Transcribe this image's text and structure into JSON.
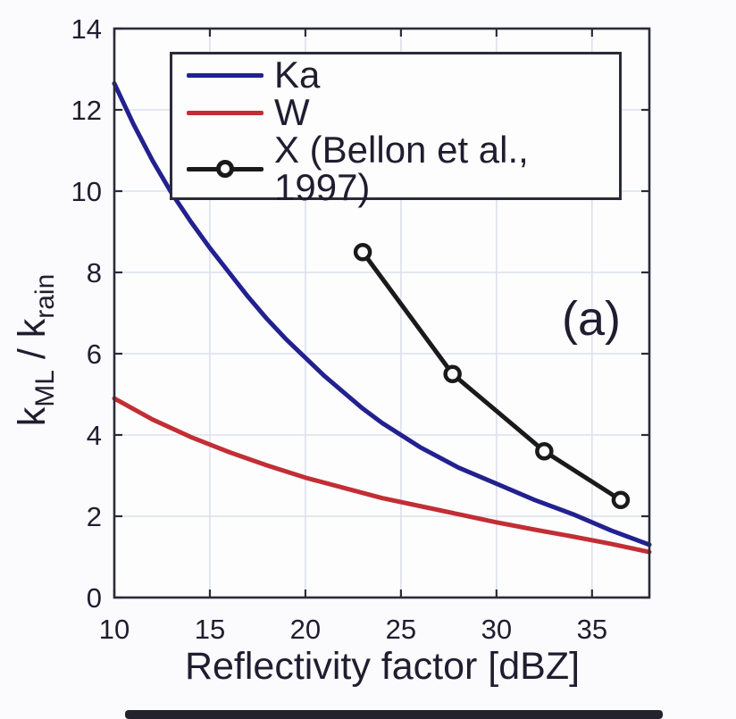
{
  "figure": {
    "panel_label": "(a)",
    "background": "#fbfafc",
    "plot_background": "#fdfdfe",
    "frame_color": "#2b2b3a",
    "grid_color": "#dde0ed",
    "text_color": "#201d30",
    "bottom_strip_color": "#23232e"
  },
  "chart_data": {
    "type": "line",
    "title": "",
    "xlabel": "Reflectivity factor [dBZ]",
    "ylabel": "k_ML / k_rain",
    "ylabel_parts": {
      "base1": "k",
      "sub1": "ML",
      "sep": " / ",
      "base2": "k",
      "sub2": "rain"
    },
    "xlim": [
      10,
      38
    ],
    "ylim": [
      0,
      14
    ],
    "xticks": [
      10,
      15,
      20,
      25,
      30,
      35
    ],
    "yticks": [
      0,
      2,
      4,
      6,
      8,
      10,
      12,
      14
    ],
    "grid": true,
    "legend_position": "top-left-inside",
    "series": [
      {
        "name": "Ka",
        "color": "#22218f",
        "marker": "none",
        "x": [
          10,
          11,
          12,
          13,
          14,
          15,
          16,
          17,
          18,
          19,
          20,
          21,
          22,
          23,
          24,
          25,
          26,
          28,
          30,
          32,
          34,
          36,
          38
        ],
        "y": [
          12.65,
          11.65,
          10.75,
          9.95,
          9.25,
          8.6,
          8.0,
          7.4,
          6.85,
          6.35,
          5.9,
          5.45,
          5.05,
          4.65,
          4.3,
          4.0,
          3.7,
          3.2,
          2.8,
          2.4,
          2.05,
          1.65,
          1.3
        ]
      },
      {
        "name": "W",
        "color": "#c22e34",
        "marker": "none",
        "x": [
          10,
          12,
          14,
          16,
          18,
          20,
          22,
          24,
          26,
          28,
          30,
          32,
          34,
          36,
          38
        ],
        "y": [
          4.9,
          4.38,
          3.95,
          3.58,
          3.25,
          2.95,
          2.7,
          2.45,
          2.25,
          2.05,
          1.85,
          1.67,
          1.5,
          1.32,
          1.12
        ]
      },
      {
        "name": "X (Bellon et al., 1997)",
        "color": "#1a1a1a",
        "marker": "circle",
        "x": [
          23,
          27.7,
          32.5,
          36.5
        ],
        "y": [
          8.5,
          5.5,
          3.6,
          2.4
        ]
      }
    ]
  }
}
